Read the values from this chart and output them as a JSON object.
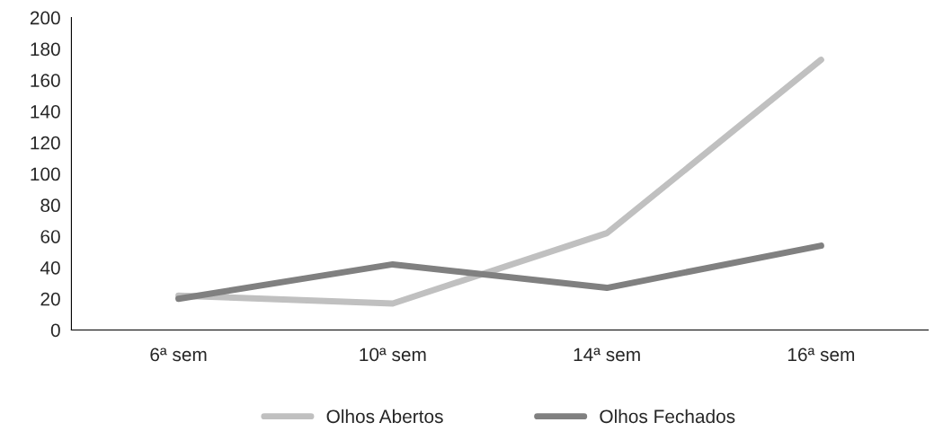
{
  "chart_data": {
    "type": "line",
    "categories": [
      "6ª sem",
      "10ª sem",
      "14ª sem",
      "16ª sem"
    ],
    "series": [
      {
        "name": "Olhos Abertos",
        "color": "#c0c0c0",
        "values": [
          22,
          17,
          62,
          173
        ]
      },
      {
        "name": "Olhos Fechados",
        "color": "#808080",
        "values": [
          20,
          42,
          27,
          54
        ]
      }
    ],
    "ylim": [
      0,
      200
    ],
    "yticks": [
      0,
      20,
      40,
      60,
      80,
      100,
      120,
      140,
      160,
      180,
      200
    ],
    "grid": false,
    "legend": "bottom",
    "marker": "none",
    "line_style": "solid"
  }
}
